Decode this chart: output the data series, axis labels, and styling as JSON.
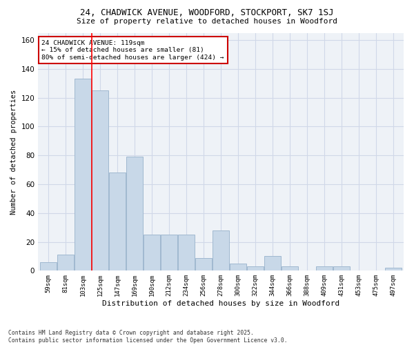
{
  "title1": "24, CHADWICK AVENUE, WOODFORD, STOCKPORT, SK7 1SJ",
  "title2": "Size of property relative to detached houses in Woodford",
  "xlabel": "Distribution of detached houses by size in Woodford",
  "ylabel": "Number of detached properties",
  "categories": [
    "59sqm",
    "81sqm",
    "103sqm",
    "125sqm",
    "147sqm",
    "169sqm",
    "190sqm",
    "212sqm",
    "234sqm",
    "256sqm",
    "278sqm",
    "300sqm",
    "322sqm",
    "344sqm",
    "366sqm",
    "388sqm",
    "409sqm",
    "431sqm",
    "453sqm",
    "475sqm",
    "497sqm"
  ],
  "values": [
    6,
    11,
    133,
    125,
    68,
    79,
    25,
    25,
    25,
    9,
    28,
    5,
    3,
    10,
    3,
    0,
    3,
    3,
    0,
    0,
    2
  ],
  "bar_color": "#c8d8e8",
  "bar_edge_color": "#a0b8d0",
  "red_line_x": 2.5,
  "annotation_text": "24 CHADWICK AVENUE: 119sqm\n← 15% of detached houses are smaller (81)\n80% of semi-detached houses are larger (424) →",
  "annotation_box_color": "#ffffff",
  "annotation_box_edge": "#cc0000",
  "grid_color": "#d0d8e8",
  "background_color": "#eef2f7",
  "footer": "Contains HM Land Registry data © Crown copyright and database right 2025.\nContains public sector information licensed under the Open Government Licence v3.0.",
  "ylim": [
    0,
    165
  ],
  "yticks": [
    0,
    20,
    40,
    60,
    80,
    100,
    120,
    140,
    160
  ]
}
